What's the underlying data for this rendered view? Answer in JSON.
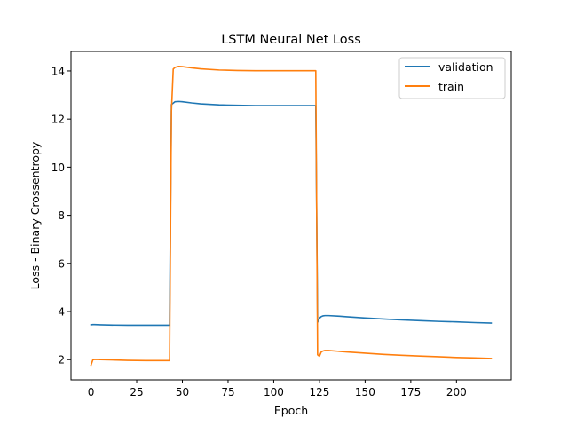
{
  "chart_data": {
    "type": "line",
    "title": "LSTM Neural Net Loss",
    "xlabel": "Epoch",
    "ylabel": "Loss - Binary Crossentropy",
    "xlim": [
      -10.95,
      229.95
    ],
    "ylim": [
      1.16,
      14.81
    ],
    "xticks": [
      0,
      25,
      50,
      75,
      100,
      125,
      150,
      175,
      200
    ],
    "yticks": [
      2,
      4,
      6,
      8,
      10,
      12,
      14
    ],
    "grid": false,
    "legend_position": "top-right",
    "series": [
      {
        "name": "validation",
        "color": "#1f77b4",
        "x": [
          0,
          1,
          2,
          5,
          10,
          20,
          30,
          40,
          43,
          44,
          45,
          46,
          48,
          50,
          55,
          60,
          70,
          80,
          90,
          100,
          110,
          120,
          123,
          124,
          125,
          126,
          127,
          128,
          130,
          135,
          140,
          150,
          160,
          170,
          180,
          190,
          200,
          210,
          219
        ],
        "y": [
          3.45,
          3.46,
          3.46,
          3.45,
          3.44,
          3.43,
          3.43,
          3.43,
          3.43,
          12.6,
          12.66,
          12.72,
          12.73,
          12.72,
          12.67,
          12.63,
          12.59,
          12.57,
          12.56,
          12.56,
          12.56,
          12.56,
          12.56,
          3.55,
          3.72,
          3.79,
          3.82,
          3.83,
          3.83,
          3.81,
          3.78,
          3.73,
          3.69,
          3.65,
          3.62,
          3.59,
          3.57,
          3.54,
          3.52
        ]
      },
      {
        "name": "train",
        "color": "#ff7f0e",
        "x": [
          0,
          1,
          2,
          5,
          10,
          20,
          30,
          40,
          43,
          44,
          45,
          46,
          48,
          50,
          55,
          60,
          70,
          80,
          90,
          100,
          110,
          120,
          123,
          124,
          125,
          126,
          127,
          128,
          130,
          135,
          140,
          150,
          160,
          170,
          180,
          190,
          200,
          210,
          219
        ],
        "y": [
          1.77,
          1.99,
          2.01,
          2.0,
          1.99,
          1.97,
          1.96,
          1.96,
          1.96,
          12.3,
          14.08,
          14.15,
          14.19,
          14.18,
          14.13,
          14.09,
          14.04,
          14.02,
          14.01,
          14.01,
          14.01,
          14.01,
          14.01,
          2.2,
          2.14,
          2.32,
          2.36,
          2.38,
          2.38,
          2.35,
          2.32,
          2.27,
          2.22,
          2.18,
          2.15,
          2.12,
          2.09,
          2.07,
          2.05
        ]
      }
    ]
  }
}
